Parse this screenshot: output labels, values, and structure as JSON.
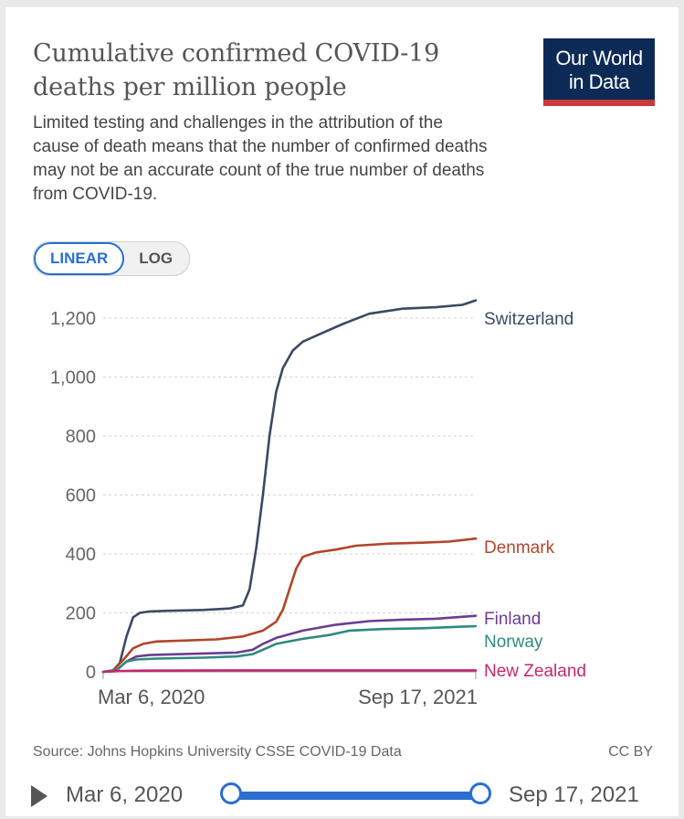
{
  "header": {
    "title": "Cumulative confirmed COVID-19 deaths per million people",
    "subtitle": "Limited testing and challenges in the attribution of the cause of death means that the number of confirmed deaths may not be an accurate count of the true number of deaths from COVID-19.",
    "logo_line1": "Our World",
    "logo_line2": "in Data"
  },
  "controls": {
    "linear_label": "LINEAR",
    "log_label": "LOG",
    "active": "LINEAR"
  },
  "footer": {
    "source": "Source: Johns Hopkins University CSSE COVID-19 Data",
    "license": "CC BY"
  },
  "timeline": {
    "start": "Mar 6, 2020",
    "end": "Sep 17, 2021"
  },
  "colors": {
    "Switzerland": "#3a4a64",
    "Denmark": "#b0462a",
    "Finland": "#6b3d92",
    "Norway": "#2f8a80",
    "New Zealand": "#c2286f",
    "accent": "#2a6fd1"
  },
  "chart_data": {
    "type": "line",
    "title": "Cumulative confirmed COVID-19 deaths per million people",
    "x_start": "Mar 6, 2020",
    "x_end": "Sep 17, 2021",
    "x_tick_labels": [
      "Mar 6, 2020",
      "Sep 17, 2021"
    ],
    "x_days_span": 560,
    "y_ticks": [
      0,
      200,
      400,
      600,
      800,
      1000,
      1200
    ],
    "y_tick_labels": [
      "0",
      "200",
      "400",
      "600",
      "800",
      "1,000",
      "1,200"
    ],
    "ylim": [
      0,
      1280
    ],
    "grid": "horizontal dashed",
    "legend": "inline labels at line ends (right)",
    "series": [
      {
        "name": "Switzerland",
        "points": [
          [
            0,
            0
          ],
          [
            15,
            5
          ],
          [
            25,
            30
          ],
          [
            35,
            120
          ],
          [
            45,
            185
          ],
          [
            55,
            200
          ],
          [
            70,
            205
          ],
          [
            100,
            207
          ],
          [
            150,
            210
          ],
          [
            190,
            215
          ],
          [
            210,
            225
          ],
          [
            220,
            280
          ],
          [
            230,
            420
          ],
          [
            240,
            600
          ],
          [
            250,
            800
          ],
          [
            260,
            950
          ],
          [
            270,
            1030
          ],
          [
            285,
            1090
          ],
          [
            300,
            1120
          ],
          [
            330,
            1150
          ],
          [
            360,
            1180
          ],
          [
            400,
            1215
          ],
          [
            450,
            1232
          ],
          [
            500,
            1237
          ],
          [
            540,
            1245
          ],
          [
            560,
            1260
          ]
        ]
      },
      {
        "name": "Denmark",
        "points": [
          [
            0,
            0
          ],
          [
            15,
            5
          ],
          [
            30,
            40
          ],
          [
            45,
            80
          ],
          [
            60,
            95
          ],
          [
            80,
            103
          ],
          [
            120,
            106
          ],
          [
            170,
            110
          ],
          [
            210,
            120
          ],
          [
            240,
            140
          ],
          [
            260,
            170
          ],
          [
            270,
            210
          ],
          [
            280,
            280
          ],
          [
            290,
            350
          ],
          [
            300,
            390
          ],
          [
            320,
            405
          ],
          [
            350,
            415
          ],
          [
            380,
            428
          ],
          [
            430,
            435
          ],
          [
            480,
            438
          ],
          [
            520,
            442
          ],
          [
            560,
            452
          ]
        ]
      },
      {
        "name": "Finland",
        "points": [
          [
            0,
            0
          ],
          [
            20,
            5
          ],
          [
            35,
            35
          ],
          [
            50,
            52
          ],
          [
            70,
            57
          ],
          [
            120,
            60
          ],
          [
            200,
            65
          ],
          [
            225,
            75
          ],
          [
            240,
            95
          ],
          [
            260,
            115
          ],
          [
            300,
            140
          ],
          [
            350,
            160
          ],
          [
            400,
            172
          ],
          [
            450,
            177
          ],
          [
            500,
            180
          ],
          [
            560,
            190
          ]
        ]
      },
      {
        "name": "Norway",
        "points": [
          [
            0,
            0
          ],
          [
            20,
            5
          ],
          [
            35,
            35
          ],
          [
            50,
            42
          ],
          [
            80,
            45
          ],
          [
            150,
            48
          ],
          [
            200,
            52
          ],
          [
            225,
            60
          ],
          [
            240,
            75
          ],
          [
            260,
            95
          ],
          [
            300,
            112
          ],
          [
            340,
            125
          ],
          [
            370,
            140
          ],
          [
            420,
            145
          ],
          [
            480,
            148
          ],
          [
            560,
            155
          ]
        ]
      },
      {
        "name": "New Zealand",
        "points": [
          [
            0,
            0
          ],
          [
            30,
            3
          ],
          [
            60,
            4
          ],
          [
            200,
            5
          ],
          [
            560,
            5
          ]
        ]
      }
    ]
  }
}
